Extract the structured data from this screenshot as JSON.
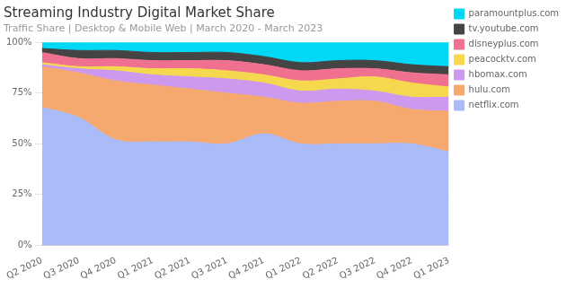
{
  "chart_data": {
    "type": "area",
    "title": "Streaming Industry Digital Market Share",
    "subtitle": "Traffic Share | Desktop & Mobile Web | March 2020 - March 2023",
    "categories": [
      "Q2 2020",
      "Q3 2020",
      "Q4 2020",
      "Q1 2021",
      "Q2 2021",
      "Q3 2021",
      "Q4 2021",
      "Q1 2022",
      "Q2 2022",
      "Q3 2022",
      "Q4 2022",
      "Q1 2023"
    ],
    "series": [
      {
        "name": "netflix.com",
        "color": "#aabbf8",
        "values": [
          68,
          63,
          52,
          51,
          51,
          50,
          55,
          50,
          50,
          50,
          50,
          46
        ]
      },
      {
        "name": "hulu.com",
        "color": "#f5a96e",
        "values": [
          20,
          22,
          29,
          28,
          26,
          25,
          18,
          20,
          21,
          21,
          17,
          20
        ]
      },
      {
        "name": "hbomax.com",
        "color": "#cc99ee",
        "values": [
          1,
          2,
          5,
          5,
          6,
          7,
          7,
          6,
          6,
          5,
          6,
          7
        ]
      },
      {
        "name": "peacocktv.com",
        "color": "#f5d84e",
        "values": [
          1,
          1,
          2,
          3,
          4,
          4,
          4,
          5,
          5,
          7,
          7,
          5
        ]
      },
      {
        "name": "disneyplus.com",
        "color": "#f07090",
        "values": [
          5,
          4,
          4,
          4,
          4,
          5,
          5,
          5,
          5,
          4,
          5,
          6
        ]
      },
      {
        "name": "tv.youtube.com",
        "color": "#444444",
        "values": [
          2,
          4,
          4,
          4,
          4,
          4,
          4,
          4,
          4,
          4,
          4,
          4
        ]
      },
      {
        "name": "paramountplus.com",
        "color": "#00d8f5",
        "values": [
          3,
          4,
          4,
          5,
          5,
          5,
          7,
          10,
          9,
          9,
          11,
          12
        ]
      }
    ],
    "stacked": true,
    "ylim": [
      0,
      100
    ],
    "yticks": [
      {
        "value": 0,
        "label": "0%"
      },
      {
        "value": 25,
        "label": "25%"
      },
      {
        "value": 50,
        "label": "50%"
      },
      {
        "value": 75,
        "label": "75%"
      },
      {
        "value": 100,
        "label": "100%"
      }
    ],
    "grid": true,
    "legend": "right"
  }
}
